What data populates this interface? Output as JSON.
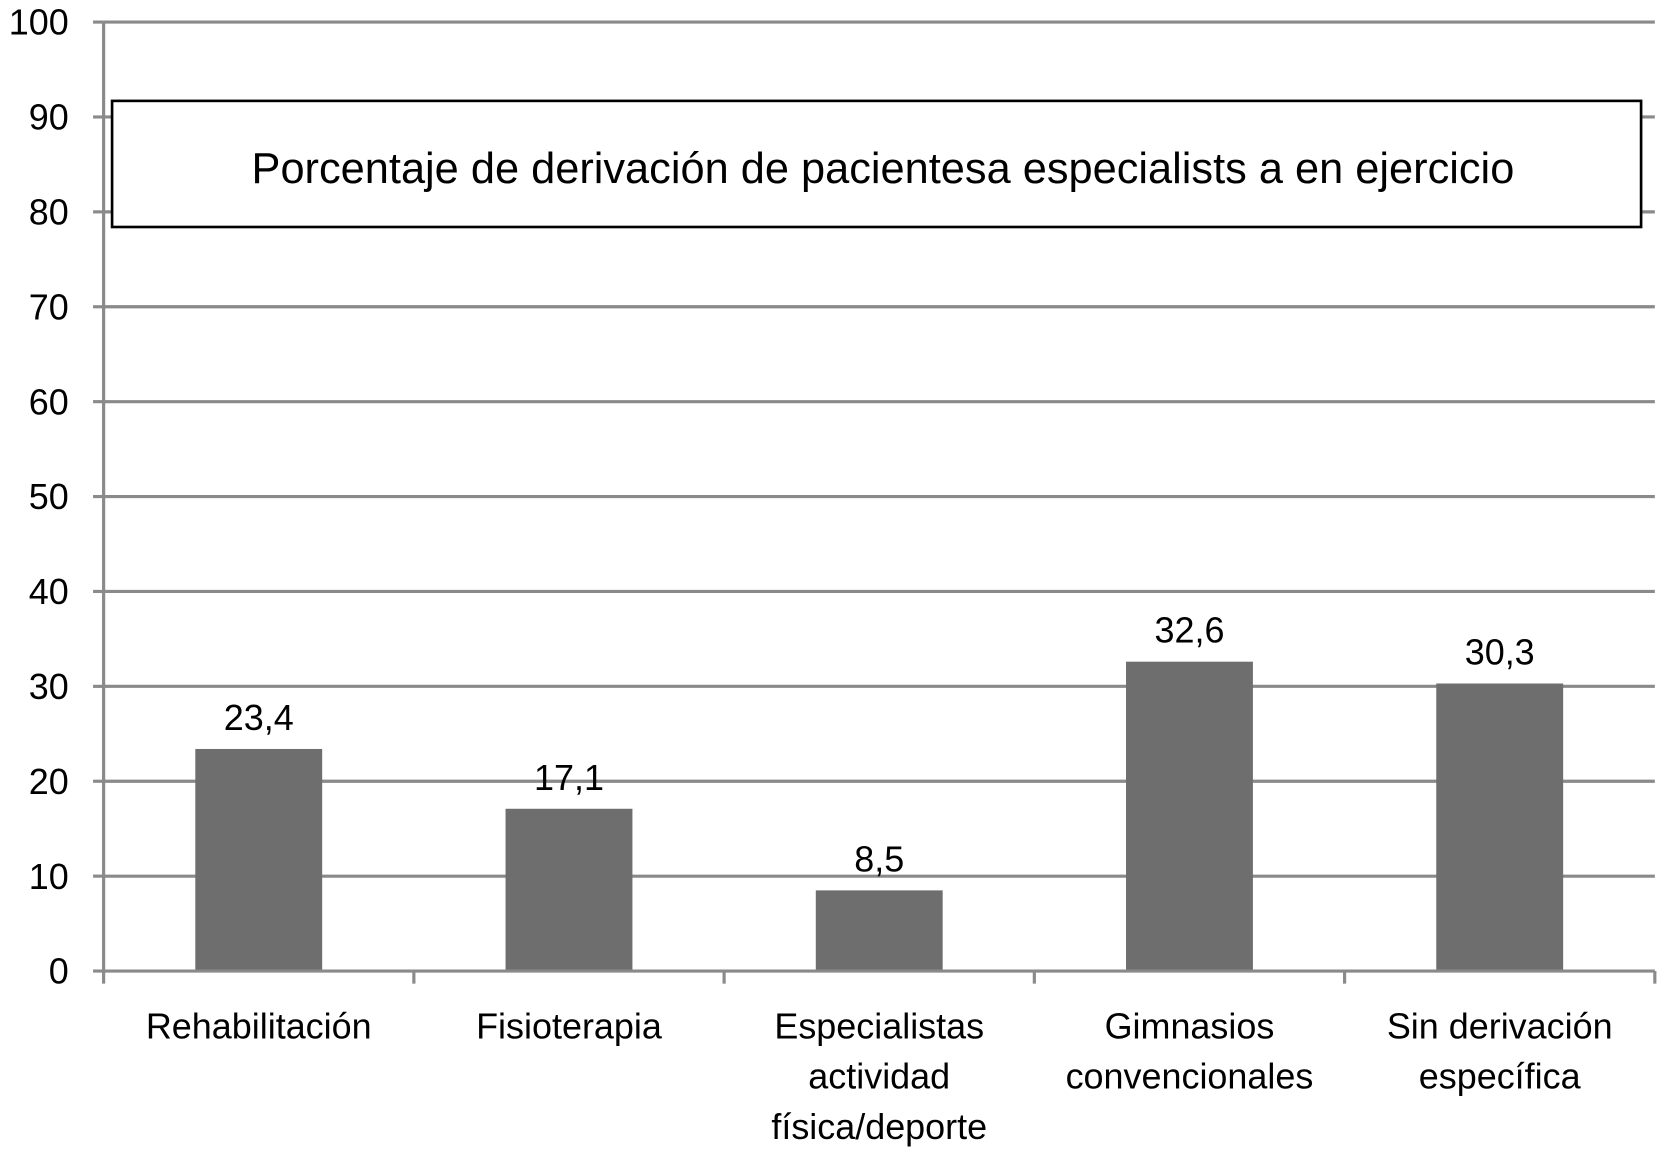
{
  "chart_data": {
    "type": "bar",
    "title": "Porcentaje de derivación de pacientesa especialists a en ejercicio",
    "categories": [
      [
        "Rehabilitación"
      ],
      [
        "Fisioterapia"
      ],
      [
        "Especialistas",
        "actividad",
        "física/deporte"
      ],
      [
        "Gimnasios",
        "convencionales"
      ],
      [
        "Sin derivación",
        "específica"
      ]
    ],
    "values": [
      23.4,
      17.1,
      8.5,
      32.6,
      30.3
    ],
    "value_labels": [
      "23,4",
      "17,1",
      "8,5",
      "32,6",
      "30,3"
    ],
    "ylim": [
      0,
      100
    ],
    "yticks": [
      0,
      10,
      20,
      30,
      40,
      50,
      60,
      70,
      80,
      90,
      100
    ],
    "xlabel": "",
    "ylabel": "",
    "grid": true,
    "legend": "none",
    "colors": {
      "bar": "#6e6e6e",
      "grid": "#8a8a8a",
      "text": "#000000"
    }
  }
}
